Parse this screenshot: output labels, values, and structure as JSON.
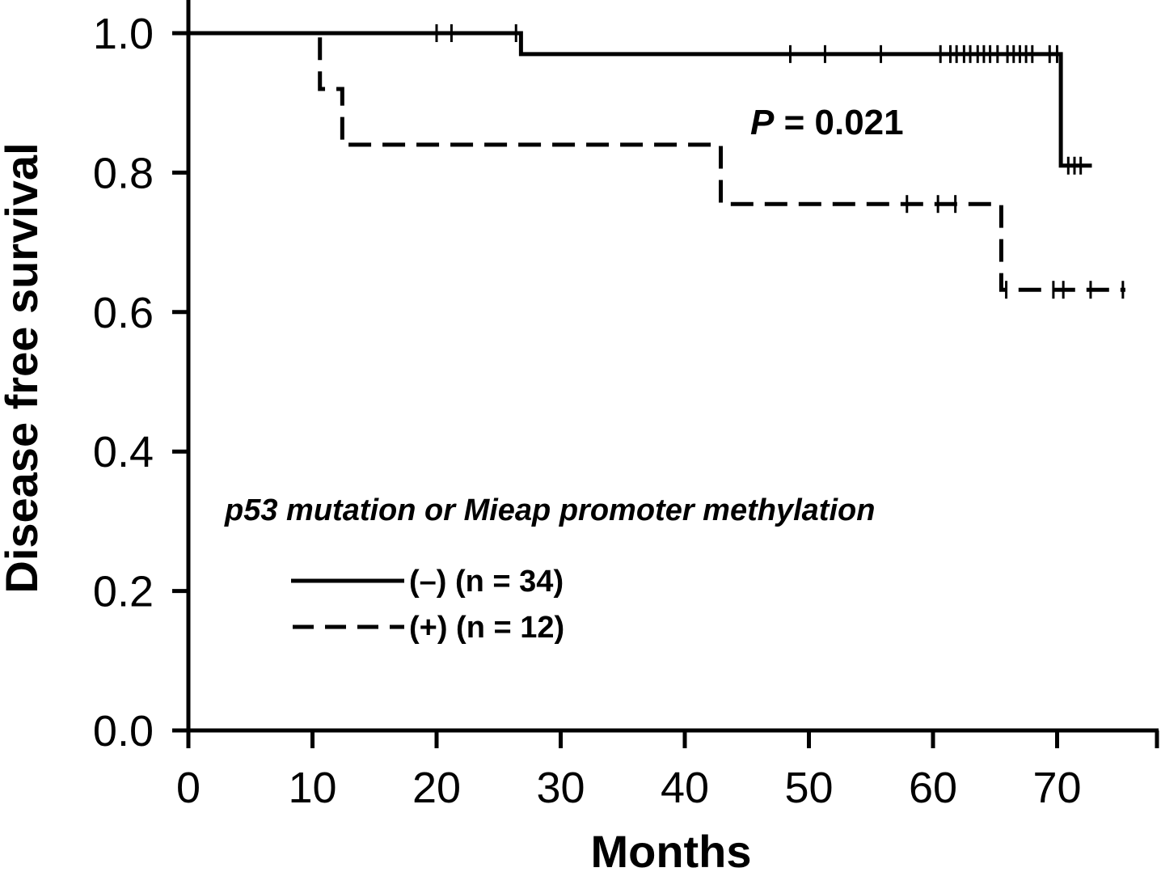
{
  "chart_data": {
    "type": "line",
    "subtype": "kaplan-meier",
    "title": "",
    "xlabel": "Months",
    "ylabel": "Disease free survival",
    "xlim": [
      0,
      78
    ],
    "ylim": [
      0,
      1.0
    ],
    "x_ticks": [
      0,
      10,
      20,
      30,
      40,
      50,
      60,
      70
    ],
    "y_ticks": [
      0.0,
      0.2,
      0.4,
      0.6,
      0.8,
      1.0
    ],
    "x_tick_labels": [
      "0",
      "10",
      "20",
      "30",
      "40",
      "50",
      "60",
      "70"
    ],
    "y_tick_labels": [
      "0.0",
      "0.2",
      "0.4",
      "0.6",
      "0.8",
      "1.0"
    ],
    "grid": false,
    "annotation": {
      "prefix": "P",
      "text": " = 0.021"
    },
    "legend": {
      "title": "p53 mutation or Mieap promoter methylation",
      "placement": "lower-left"
    },
    "series": [
      {
        "name": "(–) (n = 34)",
        "style": "solid",
        "color": "#000000",
        "steps": [
          [
            0,
            1.0
          ],
          [
            26.8,
            0.97
          ],
          [
            70.3,
            0.81
          ]
        ],
        "end_x": 72.8,
        "censored": [
          [
            20.0,
            1.0
          ],
          [
            21.2,
            1.0
          ],
          [
            26.4,
            1.0
          ],
          [
            48.5,
            0.97
          ],
          [
            51.3,
            0.97
          ],
          [
            55.8,
            0.97
          ],
          [
            60.6,
            0.97
          ],
          [
            61.4,
            0.97
          ],
          [
            61.9,
            0.97
          ],
          [
            62.5,
            0.97
          ],
          [
            63.0,
            0.97
          ],
          [
            63.6,
            0.97
          ],
          [
            64.1,
            0.97
          ],
          [
            64.6,
            0.97
          ],
          [
            65.2,
            0.97
          ],
          [
            66.0,
            0.97
          ],
          [
            66.5,
            0.97
          ],
          [
            67.0,
            0.97
          ],
          [
            67.5,
            0.97
          ],
          [
            68.0,
            0.97
          ],
          [
            69.4,
            0.97
          ],
          [
            70.0,
            0.97
          ],
          [
            70.9,
            0.81
          ],
          [
            71.4,
            0.81
          ],
          [
            71.9,
            0.81
          ]
        ]
      },
      {
        "name": "(+) (n = 12)",
        "style": "dashed",
        "color": "#000000",
        "steps": [
          [
            0,
            1.0
          ],
          [
            10.6,
            0.92
          ],
          [
            12.4,
            0.84
          ],
          [
            42.9,
            0.755
          ],
          [
            65.5,
            0.632
          ]
        ],
        "end_x": 75.5,
        "censored": [
          [
            57.9,
            0.755
          ],
          [
            60.4,
            0.755
          ],
          [
            61.8,
            0.755
          ],
          [
            65.9,
            0.632
          ],
          [
            69.7,
            0.632
          ],
          [
            70.5,
            0.632
          ],
          [
            72.7,
            0.632
          ],
          [
            75.3,
            0.632
          ]
        ]
      }
    ]
  }
}
